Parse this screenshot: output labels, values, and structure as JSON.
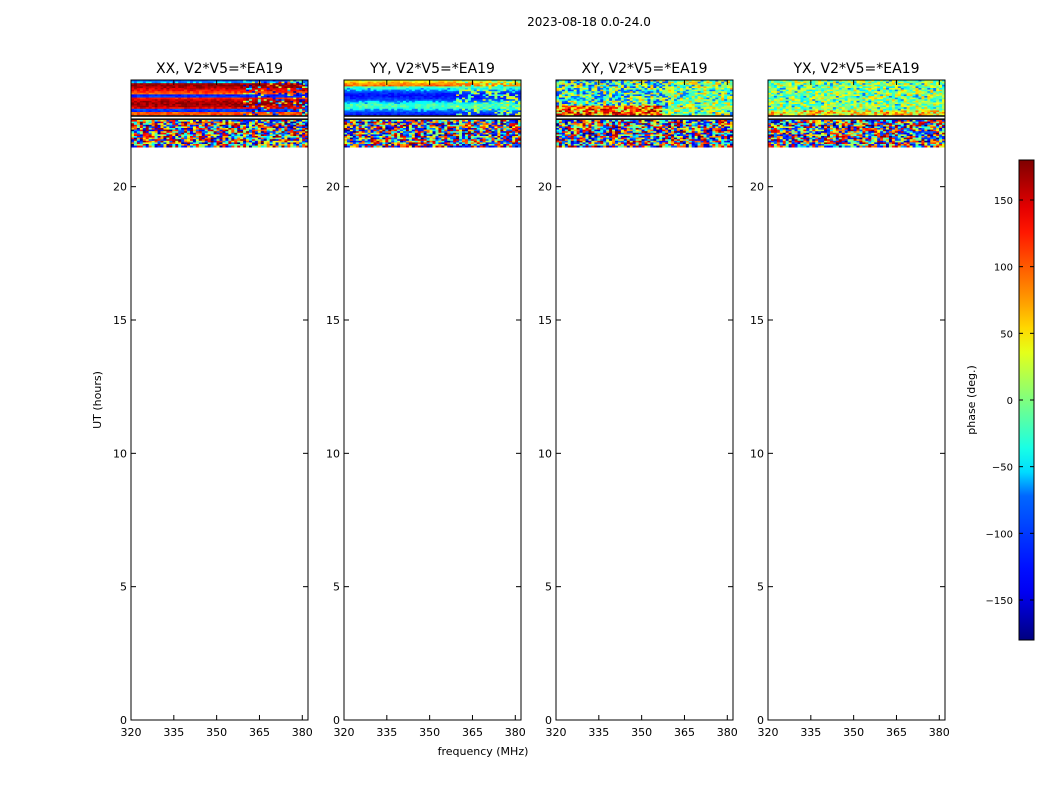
{
  "figure_title": "2023-08-18 0.0-24.0",
  "chart_data": {
    "type": "heatmap",
    "xlabel": "frequency (MHz)",
    "ylabel": "UT (hours)",
    "xlim": [
      320,
      382
    ],
    "ylim": [
      0,
      24
    ],
    "xticks": [
      320,
      335,
      350,
      365,
      380
    ],
    "yticks": [
      0,
      5,
      10,
      15,
      20
    ],
    "data_extent_hours": [
      21.5,
      24.0
    ],
    "panels": [
      {
        "id": "xx",
        "title": "XX, V2*V5=*EA19",
        "pattern": "banded_red"
      },
      {
        "id": "yy",
        "title": "YY, V2*V5=*EA19",
        "pattern": "banded_blue"
      },
      {
        "id": "xy",
        "title": "XY, V2*V5=*EA19",
        "pattern": "noise_mixed"
      },
      {
        "id": "yx",
        "title": "YX, V2*V5=*EA19",
        "pattern": "noise_green"
      }
    ],
    "colorbar": {
      "label": "phase (deg.)",
      "range": [
        -180,
        180
      ],
      "ticks": [
        150,
        100,
        50,
        0,
        -50,
        -100,
        -150
      ],
      "tick_labels": [
        "150",
        "100",
        "50",
        "0",
        "−50",
        "−100",
        "−150"
      ],
      "colormap": "jet"
    }
  },
  "colors": {
    "axis": "#000000",
    "background": "#ffffff",
    "jet": [
      "#00007f",
      "#0000ff",
      "#007fff",
      "#00ffff",
      "#7fff7f",
      "#ffff00",
      "#ff7f00",
      "#ff0000",
      "#7f0000"
    ]
  }
}
